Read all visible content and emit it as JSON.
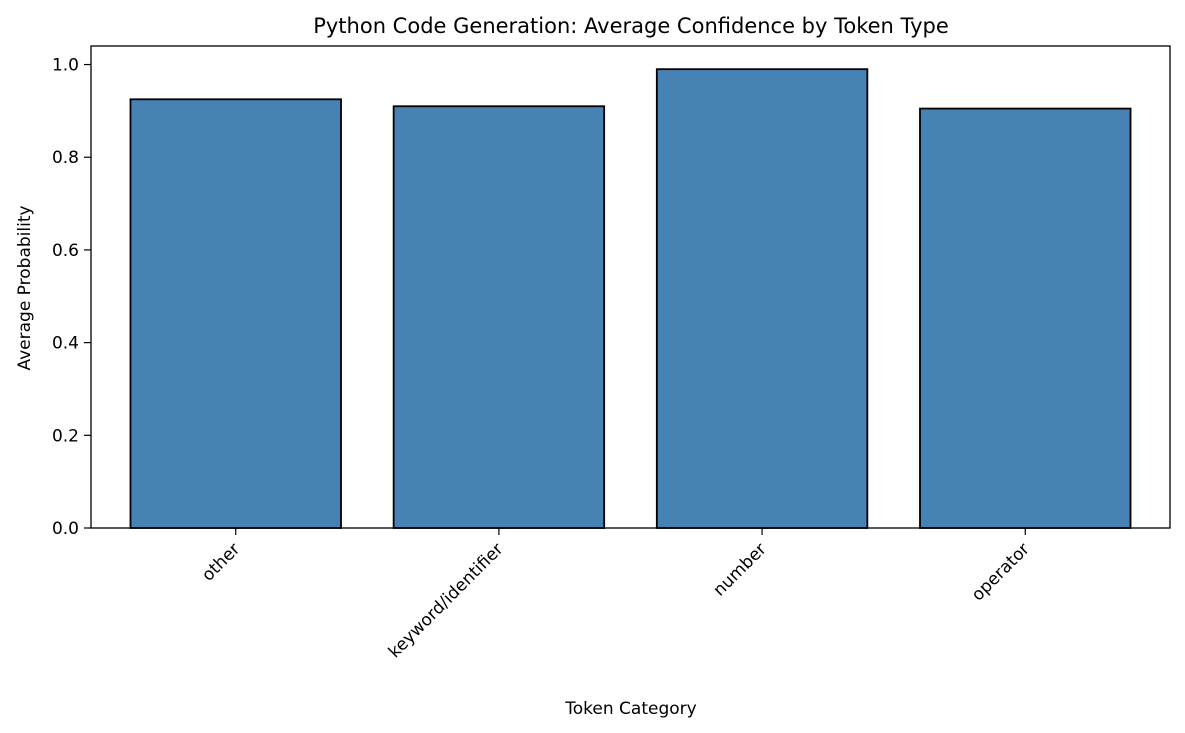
{
  "chart_data": {
    "type": "bar",
    "title": "Python Code Generation: Average Confidence by Token Type",
    "xlabel": "Token Category",
    "ylabel": "Average Probability",
    "categories": [
      "other",
      "keyword/identifier",
      "number",
      "operator"
    ],
    "values": [
      0.925,
      0.91,
      0.99,
      0.905
    ],
    "ylim": [
      0,
      1.04
    ],
    "yticks": [
      "0.0",
      "0.2",
      "0.4",
      "0.6",
      "0.8",
      "1.0"
    ],
    "grid": false,
    "legend": "none",
    "bar_color": "#4682b4",
    "bar_edge_color": "#000000"
  }
}
